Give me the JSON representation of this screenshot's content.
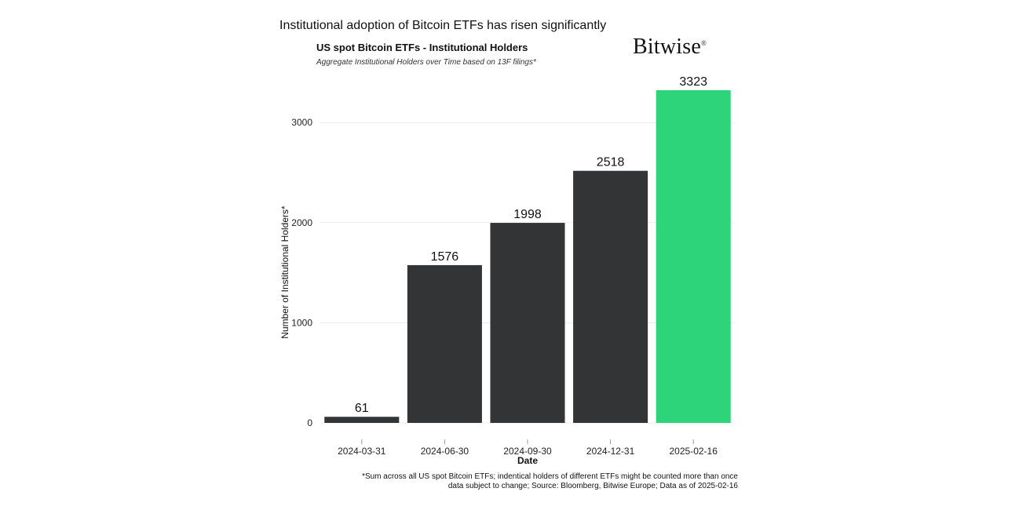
{
  "headline": "Institutional adoption of Bitcoin ETFs has risen significantly",
  "brand": {
    "name": "Bitwise",
    "mark": "®"
  },
  "footnote": {
    "line1": "*Sum across all US spot Bitcoin ETFs; indentical holders of different ETFs might be counted more than once",
    "line2": "data subject to change; Source: Bloomberg, Bitwise Europe; Data as of 2025-02-16"
  },
  "colors": {
    "bar": "#323436",
    "highlight": "#2ed47a",
    "grid": "#ececec"
  },
  "chart_data": {
    "type": "bar",
    "title": "US spot Bitcoin ETFs - Institutional Holders",
    "subtitle": "Aggregate Institutional Holders over Time based on 13F filings*",
    "xlabel": "Date",
    "ylabel": "Number of Institutional Holders*",
    "categories": [
      "2024-03-31",
      "2024-06-30",
      "2024-09-30",
      "2024-12-31",
      "2025-02-16"
    ],
    "values": [
      61,
      1576,
      1998,
      2518,
      3323
    ],
    "highlighted_category": "2025-02-16",
    "yticks": [
      0,
      1000,
      2000,
      3000
    ],
    "ylim": [
      0,
      3323
    ],
    "grid": true,
    "legend": "none"
  }
}
